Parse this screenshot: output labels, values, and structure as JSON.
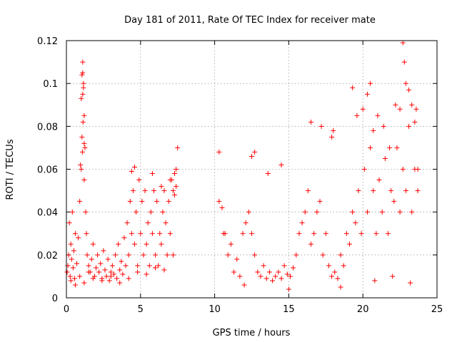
{
  "chart_data": {
    "type": "scatter",
    "title": "Day 181 of 2011, Rate Of TEC Index for receiver mate",
    "xlabel": "GPS time / hours",
    "ylabel": "ROTI / TECUs",
    "xlim": [
      0,
      25
    ],
    "ylim": [
      0,
      0.12
    ],
    "xticks": [
      0,
      5,
      10,
      15,
      20,
      25
    ],
    "yticks": [
      0,
      0.02,
      0.04,
      0.06,
      0.08,
      0.1,
      0.12
    ],
    "xtick_labels": [
      "0",
      "5",
      "10",
      "15",
      "20",
      "25"
    ],
    "ytick_labels": [
      "0",
      "0.02",
      "0.04",
      "0.06",
      "0.08",
      "0.1",
      "0.12"
    ],
    "grid": true,
    "legend": "none",
    "marker": "plus",
    "color": "#ff0000",
    "series": [
      {
        "x": [
          0.05,
          0.1,
          0.15,
          0.2,
          0.25,
          0.3,
          0.35,
          0.4,
          0.45,
          0.5,
          0.55,
          0.6,
          0.7,
          0.8,
          0.9,
          1.0,
          1.05,
          1.1,
          1.1,
          1.15,
          1.2,
          1.2,
          1.25,
          1.3,
          1.35,
          1.4,
          1.5,
          1.6,
          1.7,
          1.8,
          1.9,
          2.0,
          2.1,
          2.2,
          2.3,
          2.4,
          2.5,
          2.6,
          2.7,
          2.8,
          2.9,
          3.0,
          3.1,
          3.2,
          3.3,
          3.4,
          3.5,
          3.6,
          3.7,
          3.8,
          3.9,
          4.0,
          4.1,
          4.2,
          4.3,
          4.4,
          4.5,
          4.6,
          4.7,
          4.8,
          4.9,
          5.0,
          5.1,
          5.2,
          5.3,
          5.4,
          5.5,
          5.6,
          5.7,
          5.8,
          5.9,
          6.0,
          6.1,
          6.2,
          6.3,
          6.4,
          6.5,
          6.6,
          6.7,
          6.8,
          6.9,
          7.0,
          7.1,
          7.2,
          7.3,
          7.4,
          7.5,
          0.3,
          0.6,
          0.9,
          1.2,
          1.5,
          1.8,
          2.4,
          3.0,
          3.6,
          4.2,
          4.8,
          5.4,
          6.0,
          6.6,
          7.2,
          1.0,
          1.05,
          1.1,
          1.15,
          1.12,
          1.08,
          0.95,
          1.2,
          4.4,
          4.6,
          5.8,
          6.4,
          7.0,
          7.3,
          7.4
        ],
        "y": [
          0.012,
          0.015,
          0.02,
          0.035,
          0.01,
          0.025,
          0.018,
          0.04,
          0.014,
          0.022,
          0.009,
          0.03,
          0.016,
          0.028,
          0.045,
          0.06,
          0.075,
          0.095,
          0.105,
          0.1,
          0.085,
          0.055,
          0.07,
          0.04,
          0.03,
          0.02,
          0.015,
          0.012,
          0.018,
          0.025,
          0.01,
          0.014,
          0.02,
          0.012,
          0.016,
          0.009,
          0.022,
          0.013,
          0.01,
          0.018,
          0.008,
          0.012,
          0.015,
          0.011,
          0.02,
          0.009,
          0.025,
          0.013,
          0.017,
          0.011,
          0.028,
          0.015,
          0.035,
          0.02,
          0.045,
          0.03,
          0.05,
          0.025,
          0.04,
          0.015,
          0.055,
          0.03,
          0.045,
          0.02,
          0.05,
          0.025,
          0.035,
          0.015,
          0.04,
          0.03,
          0.05,
          0.02,
          0.045,
          0.015,
          0.03,
          0.025,
          0.04,
          0.05,
          0.035,
          0.02,
          0.045,
          0.03,
          0.055,
          0.05,
          0.058,
          0.06,
          0.07,
          0.008,
          0.006,
          0.01,
          0.007,
          0.012,
          0.009,
          0.008,
          0.01,
          0.007,
          0.009,
          0.012,
          0.011,
          0.014,
          0.013,
          0.02,
          0.093,
          0.104,
          0.11,
          0.098,
          0.082,
          0.068,
          0.062,
          0.072,
          0.059,
          0.061,
          0.058,
          0.052,
          0.055,
          0.048,
          0.052
        ]
      },
      {
        "x": [
          10.3,
          10.5,
          10.7,
          10.9,
          11.1,
          11.3,
          11.5,
          11.7,
          11.9,
          12.1,
          12.3,
          12.5,
          12.7,
          12.9,
          13.1,
          13.3,
          13.5,
          13.7,
          13.9,
          14.1,
          14.3,
          14.5,
          14.7,
          14.9,
          15.1,
          15.3,
          15.5,
          15.7,
          15.9,
          16.1,
          16.3,
          16.5,
          16.7,
          16.9,
          17.1,
          17.3,
          17.5,
          17.7,
          17.9,
          18.1,
          18.3,
          18.5,
          18.7,
          18.9,
          19.1,
          19.3,
          19.5,
          19.7,
          19.9,
          20.1,
          20.3,
          20.5,
          20.7,
          20.9,
          21.1,
          21.3,
          21.5,
          21.7,
          21.9,
          22.1,
          22.3,
          22.5,
          22.7,
          22.9,
          23.1,
          23.3,
          23.5,
          23.7,
          10.3,
          10.6,
          12.5,
          12.7,
          13.6,
          14.5,
          16.5,
          17.2,
          17.9,
          18.0,
          19.3,
          19.6,
          20.0,
          20.3,
          20.5,
          20.7,
          21.0,
          21.4,
          21.8,
          22.2,
          22.5,
          22.7,
          22.8,
          22.9,
          23.1,
          23.3,
          23.5,
          23.6,
          23.7,
          12.0,
          15.0,
          18.5,
          20.8,
          22.0,
          23.2
        ],
        "y": [
          0.068,
          0.042,
          0.03,
          0.02,
          0.025,
          0.012,
          0.018,
          0.01,
          0.03,
          0.035,
          0.04,
          0.03,
          0.02,
          0.012,
          0.01,
          0.015,
          0.009,
          0.012,
          0.008,
          0.01,
          0.012,
          0.009,
          0.015,
          0.011,
          0.01,
          0.014,
          0.02,
          0.03,
          0.035,
          0.04,
          0.05,
          0.025,
          0.03,
          0.04,
          0.045,
          0.02,
          0.03,
          0.015,
          0.01,
          0.012,
          0.009,
          0.02,
          0.015,
          0.03,
          0.025,
          0.04,
          0.035,
          0.05,
          0.03,
          0.06,
          0.04,
          0.07,
          0.05,
          0.03,
          0.055,
          0.04,
          0.065,
          0.03,
          0.05,
          0.045,
          0.07,
          0.04,
          0.06,
          0.05,
          0.08,
          0.04,
          0.06,
          0.05,
          0.045,
          0.03,
          0.066,
          0.068,
          0.058,
          0.062,
          0.082,
          0.08,
          0.075,
          0.078,
          0.098,
          0.085,
          0.088,
          0.095,
          0.1,
          0.078,
          0.085,
          0.08,
          0.07,
          0.09,
          0.088,
          0.119,
          0.11,
          0.1,
          0.097,
          0.09,
          0.082,
          0.088,
          0.06,
          0.006,
          0.004,
          0.005,
          0.008,
          0.01,
          0.007
        ]
      }
    ]
  }
}
